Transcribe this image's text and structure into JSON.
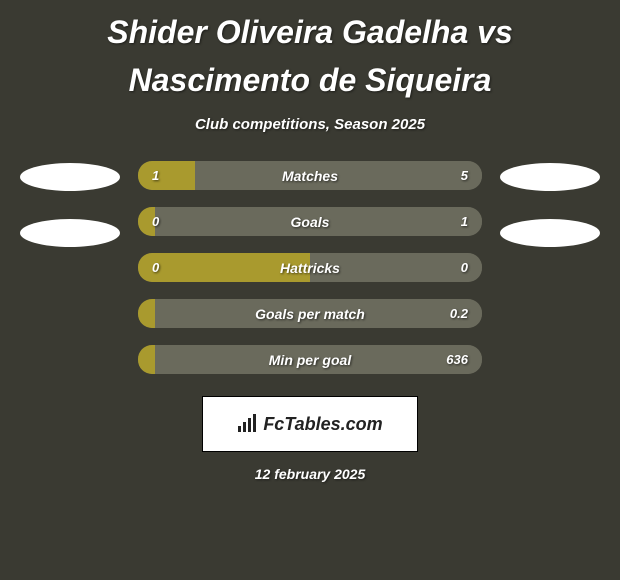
{
  "title": "Shider Oliveira Gadelha vs Nascimento de Siqueira",
  "subtitle": "Club competitions, Season 2025",
  "colors": {
    "background": "#3a3a32",
    "player1_bar": "#a99a2e",
    "player2_bar": "#6a6a5c",
    "avatar_bg": "#ffffff",
    "text": "#ffffff"
  },
  "stats": [
    {
      "label": "Matches",
      "left_val": "1",
      "right_val": "5",
      "left_pct": 16.67,
      "right_pct": 83.33
    },
    {
      "label": "Goals",
      "left_val": "0",
      "right_val": "1",
      "left_pct": 5,
      "right_pct": 95
    },
    {
      "label": "Hattricks",
      "left_val": "0",
      "right_val": "0",
      "left_pct": 50,
      "right_pct": 50
    },
    {
      "label": "Goals per match",
      "left_val": "",
      "right_val": "0.2",
      "left_pct": 5,
      "right_pct": 95
    },
    {
      "label": "Min per goal",
      "left_val": "",
      "right_val": "636",
      "left_pct": 5,
      "right_pct": 95
    }
  ],
  "avatars_shown": 2,
  "logo_text": "FcTables.com",
  "date": "12 february 2025"
}
